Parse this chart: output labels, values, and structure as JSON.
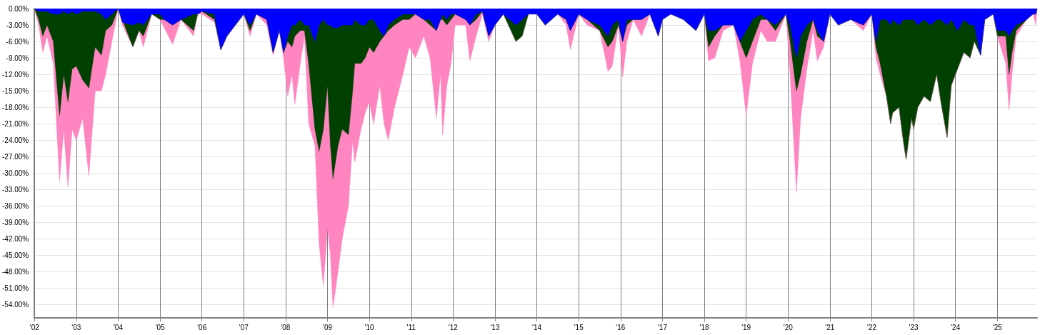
{
  "chart_data": {
    "type": "area",
    "x": [
      2002.0,
      2002.1,
      2002.2,
      2002.3,
      2002.45,
      2002.6,
      2002.7,
      2002.8,
      2002.9,
      2003.0,
      2003.15,
      2003.3,
      2003.45,
      2003.6,
      2003.7,
      2003.85,
      2004.0,
      2004.1,
      2004.35,
      2004.5,
      2004.6,
      2004.8,
      2005.0,
      2005.1,
      2005.3,
      2005.5,
      2005.8,
      2005.9,
      2006.0,
      2006.3,
      2006.45,
      2006.6,
      2006.8,
      2007.0,
      2007.15,
      2007.3,
      2007.55,
      2007.7,
      2007.85,
      2007.95,
      2008.05,
      2008.15,
      2008.22,
      2008.35,
      2008.45,
      2008.55,
      2008.7,
      2008.8,
      2008.9,
      2009.0,
      2009.07,
      2009.13,
      2009.25,
      2009.35,
      2009.5,
      2009.6,
      2009.65,
      2009.8,
      2009.9,
      2010.0,
      2010.1,
      2010.25,
      2010.35,
      2010.45,
      2010.6,
      2010.8,
      2010.95,
      2011.1,
      2011.3,
      2011.45,
      2011.6,
      2011.7,
      2011.75,
      2011.85,
      2011.95,
      2012.05,
      2012.3,
      2012.4,
      2012.55,
      2012.7,
      2012.85,
      2013.0,
      2013.2,
      2013.5,
      2013.65,
      2013.8,
      2014.0,
      2014.2,
      2014.5,
      2014.7,
      2014.8,
      2015.0,
      2015.2,
      2015.5,
      2015.7,
      2015.8,
      2015.95,
      2016.05,
      2016.15,
      2016.3,
      2016.5,
      2016.7,
      2016.9,
      2017.0,
      2017.2,
      2017.5,
      2017.8,
      2018.0,
      2018.1,
      2018.25,
      2018.45,
      2018.7,
      2018.85,
      2019.0,
      2019.15,
      2019.35,
      2019.5,
      2019.7,
      2019.95,
      2020.05,
      2020.2,
      2020.3,
      2020.45,
      2020.6,
      2020.7,
      2020.85,
      2021.0,
      2021.2,
      2021.5,
      2021.8,
      2022.0,
      2022.1,
      2022.2,
      2022.35,
      2022.45,
      2022.5,
      2022.65,
      2022.75,
      2022.82,
      2022.95,
      2023.0,
      2023.1,
      2023.25,
      2023.4,
      2023.55,
      2023.65,
      2023.8,
      2023.9,
      2024.05,
      2024.2,
      2024.35,
      2024.45,
      2024.6,
      2024.7,
      2024.9,
      2025.0,
      2025.2,
      2025.28,
      2025.35,
      2025.45,
      2025.7,
      2025.85,
      2025.92,
      2025.95
    ],
    "series": [
      {
        "color": "#ff85c0",
        "values": [
          0,
          -3,
          -8,
          -5,
          -10,
          -31.5,
          -22,
          -32.5,
          -22,
          -24,
          -20,
          -30.5,
          -15,
          -15,
          -12,
          -6,
          0,
          -3,
          -7,
          -4,
          -7,
          -1,
          -2,
          -3.5,
          -6.5,
          -2,
          -5,
          -1,
          -1,
          -2.5,
          -7.5,
          -5,
          -3,
          -1,
          -5,
          -1,
          -3,
          -8.5,
          -4,
          -9,
          -16,
          -12,
          -17.5,
          -10,
          -5,
          -21,
          -25,
          -43,
          -50.5,
          -40,
          -45,
          -54.5,
          -48,
          -42,
          -36,
          -24,
          -28,
          -22,
          -19,
          -17,
          -21,
          -14,
          -21,
          -24,
          -18,
          -12,
          -7,
          -9,
          -5,
          -9,
          -20,
          -12,
          -23,
          -14,
          -10,
          -3,
          -3,
          -9.5,
          -5,
          -1,
          -6,
          -3,
          -1,
          -6,
          -5,
          -1,
          -1,
          -3,
          -1,
          -3,
          -7.5,
          -1,
          -3,
          -4,
          -11.5,
          -10.5,
          -3,
          -12.5,
          -6,
          -2,
          -5,
          -1,
          -5,
          -2,
          -1,
          -2,
          -4,
          -1,
          -9.5,
          -9,
          -4,
          -3,
          -9.5,
          -19.5,
          -10,
          -4,
          -6,
          -6,
          -1,
          -12,
          -33.5,
          -20,
          -11,
          -4,
          -9.5,
          -7,
          -1,
          -3,
          -2,
          -4,
          -1,
          -9,
          -12,
          -16,
          -21,
          -19,
          -18,
          -24,
          -27.5,
          -20,
          -22,
          -18,
          -16,
          -17,
          -12,
          -17,
          -23.5,
          -14,
          -11,
          -8,
          -9,
          -6,
          -8.5,
          -2,
          -1,
          -5,
          -10,
          -18.5,
          -12,
          -5,
          -2,
          -1,
          -3,
          0
        ]
      },
      {
        "color": "#004000",
        "values": [
          0,
          -2,
          -5,
          -3,
          -6,
          -19.5,
          -12,
          -17,
          -11,
          -10.5,
          -13,
          -14.5,
          -7,
          -8.5,
          -4,
          -3,
          0,
          -2,
          -7,
          -4,
          -5,
          -1,
          -2,
          -2,
          -3,
          -2,
          -4,
          -1,
          -0.5,
          -2,
          -7.5,
          -5,
          -3,
          -1,
          -4,
          -1,
          -2,
          -8,
          -4,
          -8,
          -6,
          -7,
          -5,
          -4,
          -4,
          -10,
          -22,
          -26,
          -22,
          -14,
          -25,
          -31,
          -25,
          -22,
          -23,
          -15,
          -10,
          -10,
          -9,
          -7,
          -8,
          -6,
          -5,
          -4,
          -3,
          -2,
          -2,
          -1,
          -2,
          -3,
          -4,
          -2,
          -2,
          -3,
          -2,
          -1,
          -2,
          -3,
          -2,
          -0.5,
          -5,
          -3,
          -1,
          -6,
          -5,
          -1,
          -1,
          -3,
          -1,
          -2,
          -4,
          -1,
          -2,
          -4,
          -7,
          -6,
          -3,
          -6,
          -3,
          -2,
          -2,
          -1,
          -5,
          -2,
          -1,
          -2,
          -4,
          -1,
          -7,
          -5,
          -3,
          -3,
          -6,
          -9,
          -6,
          -2,
          -2,
          -4,
          -1,
          -6,
          -15,
          -12,
          -6,
          -2,
          -5,
          -6,
          -1,
          -3,
          -2,
          -3,
          -1,
          -7,
          -10,
          -16,
          -21,
          -19,
          -18,
          -24,
          -27.5,
          -20,
          -22,
          -18,
          -16,
          -17,
          -12,
          -17,
          -23.5,
          -14,
          -11,
          -8,
          -9,
          -6,
          -8.5,
          -2,
          -1,
          -5,
          -5,
          -12,
          -8,
          -4,
          -2,
          -1,
          -1,
          0
        ]
      },
      {
        "color": "#0000ff",
        "values": [
          0,
          -0.5,
          -0.5,
          -0.5,
          -1,
          -1,
          -0.5,
          -1,
          -0.5,
          -1,
          -0.5,
          -0.5,
          -0.5,
          -1,
          -2,
          -1,
          0,
          -2.5,
          -3,
          -2.5,
          -3,
          -1,
          -1,
          -2,
          -3,
          -2,
          -1,
          -1,
          -0.5,
          -1,
          -7.5,
          -5,
          -3,
          -1,
          -3,
          -1,
          -2,
          -8,
          -4,
          -8,
          -5,
          -3,
          -3,
          -2,
          -3,
          -3,
          -6,
          -3,
          -2,
          -3,
          -3,
          -3.5,
          -3.5,
          -3,
          -3,
          -3,
          -2,
          -3,
          -3,
          -2,
          -2,
          -4,
          -5,
          -3,
          -2,
          -1,
          -1,
          -1,
          -2,
          -2,
          -4,
          -2,
          -1,
          -2,
          -1,
          -1,
          -2,
          -3,
          -1,
          -0.5,
          -5,
          -3,
          -1,
          -3,
          -2,
          -1,
          -1,
          -3,
          -1,
          -2,
          -4,
          -1,
          -2,
          -3,
          -5,
          -3,
          -2,
          -6,
          -2,
          -2,
          -2,
          -1,
          -5,
          -2,
          -1,
          -2,
          -4,
          -1,
          -4,
          -4,
          -3,
          -3,
          -6,
          -4,
          -2,
          -1,
          -2,
          -3,
          -1,
          -3,
          -9,
          -5,
          -3,
          -2,
          -4,
          -6,
          -1,
          -3,
          -2,
          -3,
          -1,
          -6,
          -2,
          -2,
          -3,
          -2,
          -3,
          -2,
          -2,
          -2,
          -2,
          -3,
          -2,
          -3,
          -2,
          -2,
          -3,
          -2,
          -4,
          -2,
          -3,
          -3,
          -8.5,
          -2,
          -1,
          -4,
          -4,
          -5,
          -4,
          -3,
          -2,
          -1,
          -1,
          0
        ]
      }
    ],
    "xlim": [
      2002,
      2025.95
    ],
    "xticks": [
      {
        "value": 2002,
        "label": "'02"
      },
      {
        "value": 2003,
        "label": "'03"
      },
      {
        "value": 2004,
        "label": "'04"
      },
      {
        "value": 2005,
        "label": "'05"
      },
      {
        "value": 2006,
        "label": "'06"
      },
      {
        "value": 2007,
        "label": "'07"
      },
      {
        "value": 2008,
        "label": "'08"
      },
      {
        "value": 2009,
        "label": "'09"
      },
      {
        "value": 2010,
        "label": "'10"
      },
      {
        "value": 2011,
        "label": "'11"
      },
      {
        "value": 2012,
        "label": "'12"
      },
      {
        "value": 2013,
        "label": "'13"
      },
      {
        "value": 2014,
        "label": "'14"
      },
      {
        "value": 2015,
        "label": "'15"
      },
      {
        "value": 2016,
        "label": "'16"
      },
      {
        "value": 2017,
        "label": "'17"
      },
      {
        "value": 2018,
        "label": "'18"
      },
      {
        "value": 2019,
        "label": "'19"
      },
      {
        "value": 2020,
        "label": "'20"
      },
      {
        "value": 2021,
        "label": "'21"
      },
      {
        "value": 2022,
        "label": "'22"
      },
      {
        "value": 2023,
        "label": "'23"
      },
      {
        "value": 2024,
        "label": "'24"
      },
      {
        "value": 2025,
        "label": "'25"
      }
    ],
    "ylim": [
      -56.4,
      0
    ],
    "yticks": [
      {
        "value": 0,
        "label": "0.00%"
      },
      {
        "value": -3,
        "label": "-3.00%"
      },
      {
        "value": -6,
        "label": "-6.00%"
      },
      {
        "value": -9,
        "label": "-9.00%"
      },
      {
        "value": -12,
        "label": "-12.00%"
      },
      {
        "value": -15,
        "label": "-15.00%"
      },
      {
        "value": -18,
        "label": "-18.00%"
      },
      {
        "value": -21,
        "label": "-21.00%"
      },
      {
        "value": -24,
        "label": "-24.00%"
      },
      {
        "value": -27,
        "label": "-27.00%"
      },
      {
        "value": -30,
        "label": "-30.00%"
      },
      {
        "value": -33,
        "label": "-33.00%"
      },
      {
        "value": -36,
        "label": "-36.00%"
      },
      {
        "value": -39,
        "label": "-39.00%"
      },
      {
        "value": -42,
        "label": "-42.00%"
      },
      {
        "value": -45,
        "label": "-45.00%"
      },
      {
        "value": -48,
        "label": "-48.00%"
      },
      {
        "value": -51,
        "label": "-51.00%"
      },
      {
        "value": -54,
        "label": "-54.00%"
      }
    ],
    "grid": true,
    "marker": "none"
  }
}
